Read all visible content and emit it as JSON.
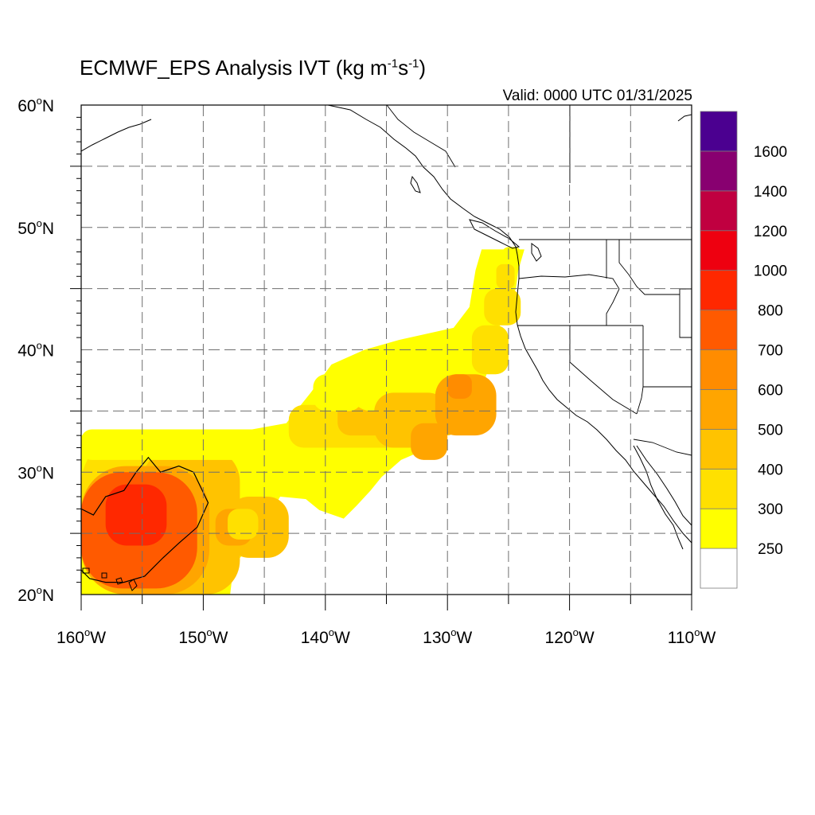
{
  "title": {
    "text": "ECMWF_EPS Analysis IVT (kg m",
    "sup1": "-1",
    "mid": "s",
    "sup2": "-1",
    "end": ")"
  },
  "valid_text": "Valid: 0000 UTC 01/31/2025",
  "axes": {
    "lon_min": -160,
    "lon_max": -110,
    "lat_min": 20,
    "lat_max": 60,
    "x_ticks": [
      {
        "value": -160,
        "label": "160°W"
      },
      {
        "value": -150,
        "label": "150°W"
      },
      {
        "value": -140,
        "label": "140°W"
      },
      {
        "value": -130,
        "label": "130°W"
      },
      {
        "value": -120,
        "label": "120°W"
      },
      {
        "value": -110,
        "label": "110°W"
      }
    ],
    "y_ticks": [
      {
        "value": 20,
        "label": "20°N"
      },
      {
        "value": 30,
        "label": "30°N"
      },
      {
        "value": 40,
        "label": "40°N"
      },
      {
        "value": 50,
        "label": "50°N"
      },
      {
        "value": 60,
        "label": "60°N"
      }
    ],
    "grid_lon": [
      -155,
      -150,
      -145,
      -140,
      -135,
      -130,
      -125,
      -120,
      -115
    ],
    "grid_lat": [
      25,
      30,
      35,
      40,
      45,
      50,
      55
    ],
    "grid": true
  },
  "colorbar": {
    "levels": [
      "250",
      "300",
      "400",
      "500",
      "600",
      "700",
      "800",
      "1000",
      "1200",
      "1400",
      "1600"
    ],
    "colors": [
      "#ffffff",
      "#ffff00",
      "#ffe000",
      "#ffc300",
      "#ffa500",
      "#ff8c00",
      "#ff5a00",
      "#ff2800",
      "#ee0010",
      "#c00040",
      "#880070",
      "#4b0090"
    ]
  },
  "ivt_field": [
    {
      "lon": -160,
      "lat": 20,
      "w": 12,
      "h": 13.2,
      "level": 2
    },
    {
      "lon": -155,
      "lat": 20,
      "w": 8,
      "h": 12,
      "level": 3
    },
    {
      "lon": -160,
      "lat": 20,
      "w": 10.5,
      "h": 10.5,
      "level": 4
    },
    {
      "lon": -160,
      "lat": 20.5,
      "w": 9.5,
      "h": 9.5,
      "level": 6
    },
    {
      "lon": -158,
      "lat": 24,
      "w": 5,
      "h": 5,
      "level": 7
    },
    {
      "lon": -148,
      "lat": 23,
      "w": 5,
      "h": 5,
      "level": 3
    },
    {
      "lon": -149,
      "lat": 24,
      "w": 3,
      "h": 3,
      "level": 4
    },
    {
      "lon": -148,
      "lat": 24.5,
      "w": 2.5,
      "h": 2.5,
      "level": 2
    },
    {
      "lon": -160,
      "lat": 31,
      "w": 18,
      "h": 2.5,
      "level": 1
    },
    {
      "lon": -143,
      "lat": 32,
      "w": 12,
      "h": 3.5,
      "level": 2
    },
    {
      "lon": -139,
      "lat": 33,
      "w": 10,
      "h": 3,
      "level": 3
    },
    {
      "lon": -138,
      "lat": 35,
      "w": 8,
      "h": 5,
      "level": 1
    },
    {
      "lon": -141,
      "lat": 35,
      "w": 4,
      "h": 3,
      "level": 1
    },
    {
      "lon": -136,
      "lat": 32,
      "w": 6,
      "h": 4.5,
      "level": 3
    },
    {
      "lon": -131,
      "lat": 33,
      "w": 5,
      "h": 5,
      "level": 4
    },
    {
      "lon": -133,
      "lat": 31,
      "w": 3,
      "h": 3,
      "level": 4
    },
    {
      "lon": -130,
      "lat": 36,
      "w": 2,
      "h": 2,
      "level": 5
    },
    {
      "lon": -128,
      "lat": 38,
      "w": 3,
      "h": 4,
      "level": 2
    },
    {
      "lon": -127,
      "lat": 42,
      "w": 3,
      "h": 3,
      "level": 2
    },
    {
      "lon": -126,
      "lat": 45,
      "w": 1.5,
      "h": 2,
      "level": 2
    },
    {
      "lon": -125.5,
      "lat": 47,
      "w": 1.5,
      "h": 1.4,
      "level": 1
    }
  ],
  "ivt_outline": [
    [
      -160,
      27
    ],
    [
      -159,
      26.5
    ],
    [
      -158,
      28
    ],
    [
      -156.5,
      28.5
    ],
    [
      -155.5,
      30
    ],
    [
      -154.5,
      31.2
    ],
    [
      -153.5,
      30
    ],
    [
      -152,
      30.5
    ],
    [
      -150.8,
      30
    ],
    [
      -149.6,
      27.5
    ],
    [
      -150.5,
      25.5
    ],
    [
      -152,
      24.2
    ],
    [
      -153.3,
      23
    ],
    [
      -154.8,
      21.5
    ],
    [
      -156.5,
      21
    ],
    [
      -158,
      21
    ],
    [
      -159.3,
      21.3
    ],
    [
      -160,
      22
    ]
  ],
  "ivt_plume": [
    [
      -160,
      33
    ],
    [
      -154,
      33
    ],
    [
      -150,
      33.5
    ],
    [
      -146,
      33.5
    ],
    [
      -143.2,
      34
    ],
    [
      -141.2,
      36.5
    ],
    [
      -139.5,
      38.8
    ],
    [
      -136.8,
      40
    ],
    [
      -134,
      40.8
    ],
    [
      -129.5,
      41.8
    ],
    [
      -128.2,
      43.5
    ],
    [
      -127.7,
      46.5
    ],
    [
      -127.2,
      48.2
    ],
    [
      -123.7,
      48.2
    ],
    [
      -124.2,
      46.5
    ],
    [
      -124.4,
      45
    ],
    [
      -125.6,
      42.5
    ],
    [
      -125.9,
      41
    ],
    [
      -126.8,
      38
    ],
    [
      -127.6,
      35.5
    ],
    [
      -129.3,
      34.5
    ],
    [
      -130.6,
      33
    ],
    [
      -131.5,
      32
    ],
    [
      -133.8,
      31
    ],
    [
      -135.4,
      29.6
    ],
    [
      -136.3,
      28.5
    ],
    [
      -137.5,
      27.2
    ],
    [
      -138.5,
      26.2
    ],
    [
      -140.5,
      26.9
    ],
    [
      -141.6,
      27.8
    ],
    [
      -143.7,
      28
    ],
    [
      -144.3,
      27
    ],
    [
      -144.7,
      25.2
    ],
    [
      -145.4,
      24
    ],
    [
      -146.5,
      23.5
    ],
    [
      -147.5,
      22.5
    ],
    [
      -147.8,
      20
    ],
    [
      -160,
      20
    ]
  ]
}
